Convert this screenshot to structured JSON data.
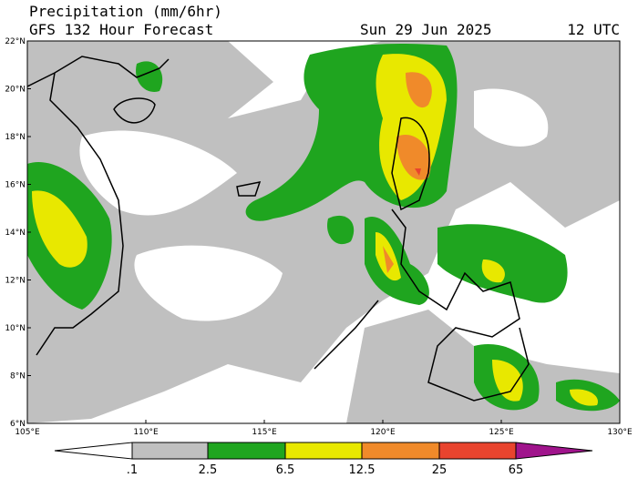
{
  "header": {
    "title": "Precipitation (mm/6hr)",
    "subtitle": "GFS 132 Hour Forecast",
    "date": "Sun 29 Jun 2025",
    "time": "12 UTC"
  },
  "map": {
    "lat_labels": [
      "22°N",
      "20°N",
      "18°N",
      "16°N",
      "14°N",
      "12°N",
      "10°N",
      "8°N",
      "6°N"
    ],
    "lon_labels": [
      "105°E",
      "110°E",
      "115°E",
      "120°E",
      "125°E",
      "130°E"
    ]
  },
  "colorbar": {
    "labels": [
      ".1",
      "2.5",
      "6.5",
      "12.5",
      "25",
      "65"
    ]
  }
}
